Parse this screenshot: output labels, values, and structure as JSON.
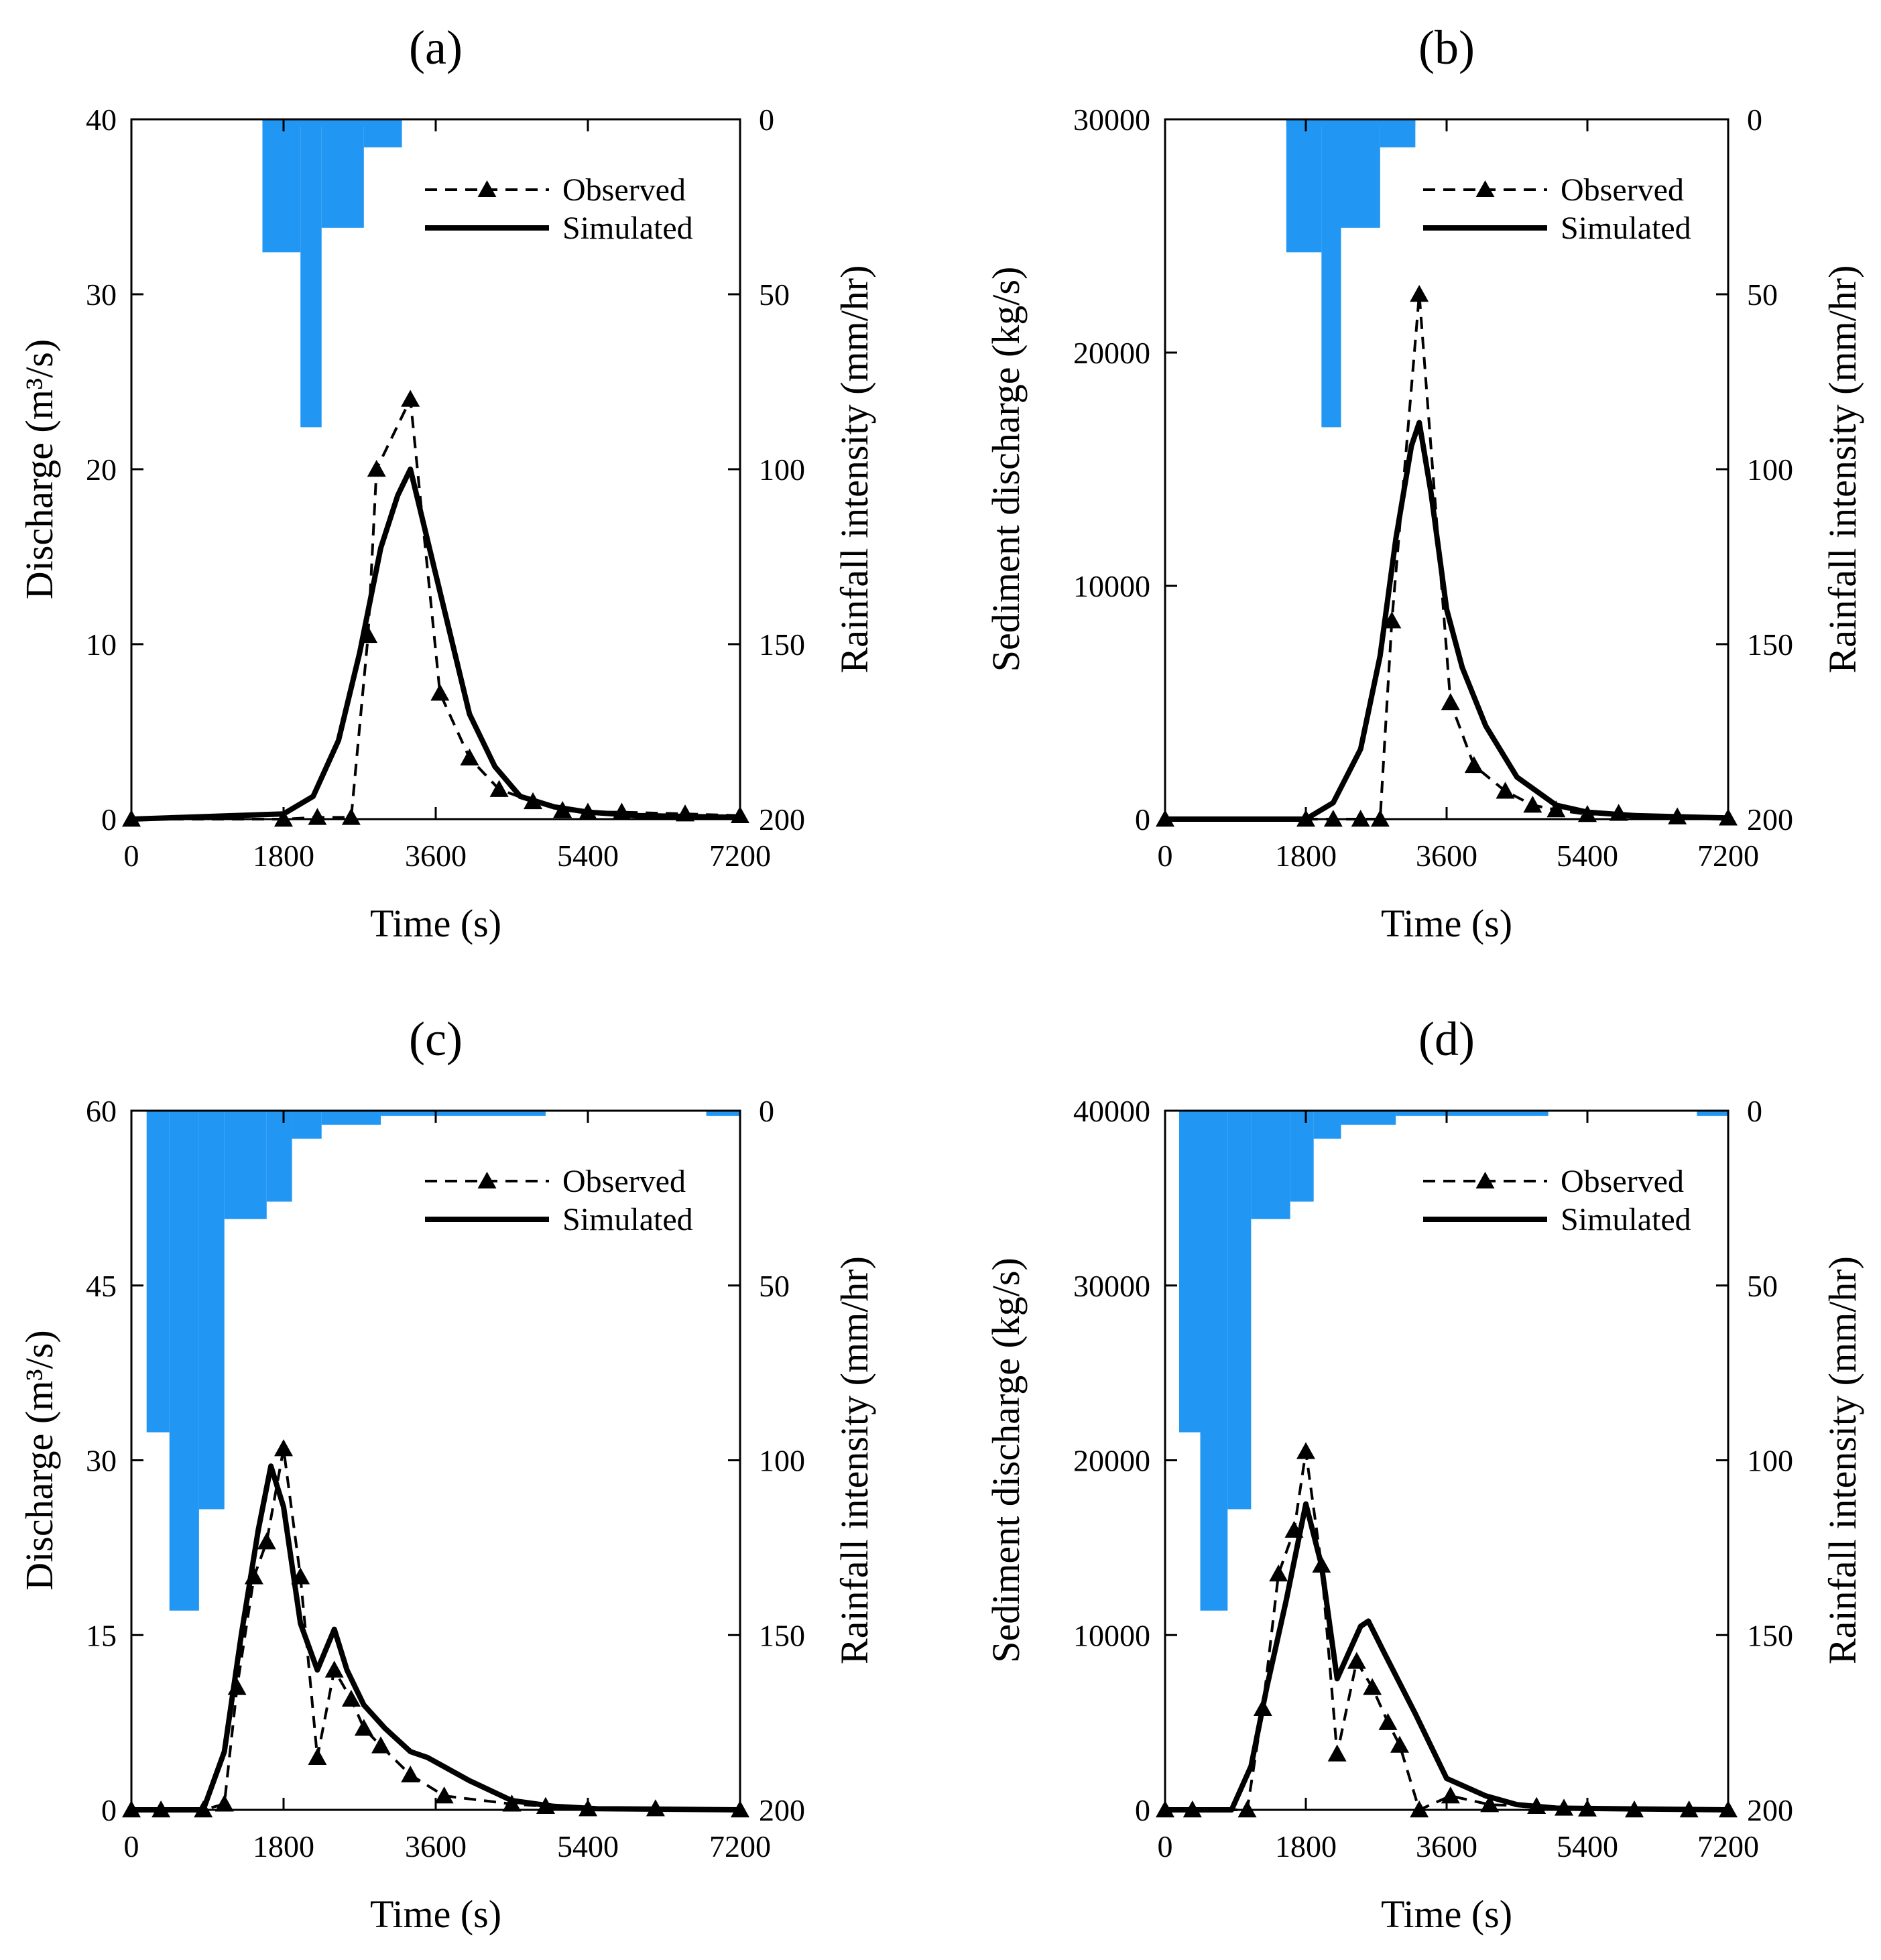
{
  "figure": {
    "panels": [
      "(a)",
      "(b)",
      "(c)",
      "(d)"
    ]
  },
  "colors": {
    "rainfall": "#2196F3",
    "observed": "#000000",
    "simulated": "#000000"
  },
  "chart_data": [
    {
      "panel": "(a)",
      "type": "line",
      "title": "(a)",
      "xlabel": "Time (s)",
      "ylabel": "Discharge (m³/s)",
      "y2label": "Rainfall intensity (mm/hr)",
      "xlim": [
        0,
        7200
      ],
      "xticks": [
        "0",
        "1800",
        "3600",
        "5400",
        "7200"
      ],
      "ylim": [
        0,
        40
      ],
      "yticks": [
        "0",
        "10",
        "20",
        "30",
        "40"
      ],
      "y2lim": [
        0,
        200
      ],
      "y2ticks": [
        "0",
        "50",
        "100",
        "150",
        "200"
      ],
      "legend": {
        "observed": "Observed",
        "simulated": "Simulated",
        "position": "top-right"
      },
      "rainfall": [
        {
          "x0": 1550,
          "x1": 2000,
          "value": 38
        },
        {
          "x0": 2000,
          "x1": 2250,
          "value": 88
        },
        {
          "x0": 2250,
          "x1": 2750,
          "value": 31
        },
        {
          "x0": 2750,
          "x1": 3200,
          "value": 8
        },
        {
          "x0": 1550,
          "x1": 3200,
          "value": 2
        }
      ],
      "series": [
        {
          "name": "Observed",
          "style": "dashed-triangle",
          "x": [
            0,
            1800,
            2200,
            2600,
            2800,
            2900,
            3300,
            3650,
            4000,
            4350,
            4750,
            5100,
            5400,
            5800,
            6550,
            7200
          ],
          "y": [
            0,
            0,
            0.1,
            0.1,
            10.5,
            20,
            24,
            7.2,
            3.5,
            1.7,
            1.0,
            0.5,
            0.4,
            0.4,
            0.3,
            0.2
          ]
        },
        {
          "name": "Simulated",
          "style": "solid-thick",
          "x": [
            0,
            1800,
            2150,
            2450,
            2700,
            2950,
            3150,
            3300,
            3400,
            3600,
            3800,
            4000,
            4300,
            4600,
            5000,
            5400,
            6000,
            7200
          ],
          "y": [
            0,
            0.3,
            1.3,
            4.5,
            9.5,
            15.5,
            18.5,
            20,
            18,
            14,
            10,
            6,
            3,
            1.3,
            0.7,
            0.4,
            0.2,
            0.1
          ]
        }
      ]
    },
    {
      "panel": "(b)",
      "type": "line",
      "title": "(b)",
      "xlabel": "Time (s)",
      "ylabel": "Sediment discharge (kg/s)",
      "y2label": "Rainfall intensity (mm/hr)",
      "xlim": [
        0,
        7200
      ],
      "xticks": [
        "0",
        "1800",
        "3600",
        "5400",
        "7200"
      ],
      "ylim": [
        0,
        30000
      ],
      "yticks": [
        "0",
        "10000",
        "20000",
        "30000"
      ],
      "y2lim": [
        0,
        200
      ],
      "y2ticks": [
        "0",
        "50",
        "100",
        "150",
        "200"
      ],
      "legend": {
        "observed": "Observed",
        "simulated": "Simulated",
        "position": "top-right"
      },
      "rainfall": [
        {
          "x0": 1550,
          "x1": 2000,
          "value": 38
        },
        {
          "x0": 2000,
          "x1": 2250,
          "value": 88
        },
        {
          "x0": 2250,
          "x1": 2750,
          "value": 31
        },
        {
          "x0": 2750,
          "x1": 3200,
          "value": 8
        },
        {
          "x0": 1550,
          "x1": 3200,
          "value": 2
        }
      ],
      "series": [
        {
          "name": "Observed",
          "style": "dashed-triangle",
          "x": [
            0,
            1800,
            2150,
            2500,
            2750,
            2900,
            3250,
            3650,
            3950,
            4350,
            4700,
            5000,
            5400,
            5800,
            6550,
            7200
          ],
          "y": [
            0,
            0,
            0,
            0,
            0,
            8500,
            22500,
            5000,
            2300,
            1200,
            600,
            400,
            200,
            250,
            100,
            50
          ],
          "note_points": "markers at each listed x"
        },
        {
          "name": "Simulated",
          "style": "solid-thick",
          "x": [
            0,
            1800,
            2150,
            2500,
            2750,
            2950,
            3150,
            3250,
            3400,
            3600,
            3800,
            4100,
            4500,
            5000,
            5400,
            6000,
            7200
          ],
          "y": [
            0,
            0,
            700,
            3000,
            7000,
            12000,
            16000,
            17000,
            14000,
            9000,
            6500,
            4000,
            1800,
            600,
            300,
            150,
            50
          ]
        }
      ]
    },
    {
      "panel": "(c)",
      "type": "line",
      "title": "(c)",
      "xlabel": "Time (s)",
      "ylabel": "Discharge (m³/s)",
      "y2label": "Rainfall intensity (mm/hr)",
      "xlim": [
        0,
        7200
      ],
      "xticks": [
        "0",
        "1800",
        "3600",
        "5400",
        "7200"
      ],
      "ylim": [
        0,
        60
      ],
      "yticks": [
        "0",
        "15",
        "30",
        "45",
        "60"
      ],
      "y2lim": [
        0,
        200
      ],
      "y2ticks": [
        "0",
        "50",
        "100",
        "150",
        "200"
      ],
      "legend": {
        "observed": "Observed",
        "simulated": "Simulated",
        "position": "top-right"
      },
      "rainfall": [
        {
          "x0": 180,
          "x1": 450,
          "value": 92
        },
        {
          "x0": 450,
          "x1": 800,
          "value": 143
        },
        {
          "x0": 800,
          "x1": 1100,
          "value": 114
        },
        {
          "x0": 1100,
          "x1": 1600,
          "value": 31
        },
        {
          "x0": 1600,
          "x1": 1900,
          "value": 26
        },
        {
          "x0": 1900,
          "x1": 2250,
          "value": 8
        },
        {
          "x0": 2250,
          "x1": 2950,
          "value": 4
        },
        {
          "x0": 2950,
          "x1": 4900,
          "value": 1.5
        },
        {
          "x0": 6800,
          "x1": 7200,
          "value": 1.5
        }
      ],
      "series": [
        {
          "name": "Observed",
          "style": "dashed-triangle",
          "x": [
            0,
            350,
            850,
            1100,
            1250,
            1450,
            1600,
            1800,
            2000,
            2200,
            2400,
            2600,
            2750,
            2950,
            3300,
            3700,
            4500,
            4900,
            5400,
            6200,
            7200
          ],
          "y": [
            0,
            0,
            0,
            0.5,
            10.5,
            20,
            23,
            31,
            20,
            4.5,
            12,
            9.5,
            7,
            5.5,
            3,
            1.2,
            0.5,
            0.3,
            0.1,
            0.1,
            0
          ],
          "note_points": "markers at each listed x"
        },
        {
          "name": "Simulated",
          "style": "solid-thick",
          "x": [
            0,
            850,
            1100,
            1300,
            1500,
            1650,
            1800,
            2000,
            2200,
            2400,
            2550,
            2750,
            3000,
            3300,
            3500,
            4000,
            4500,
            5000,
            5500,
            7200
          ],
          "y": [
            0,
            0,
            5,
            15,
            24,
            29.5,
            26,
            16,
            12,
            15.5,
            12,
            9,
            7,
            5,
            4.5,
            2.5,
            0.8,
            0.3,
            0.1,
            0
          ]
        }
      ]
    },
    {
      "panel": "(d)",
      "type": "line",
      "title": "(d)",
      "xlabel": "Time (s)",
      "ylabel": "Sediment discharge (kg/s)",
      "y2label": "Rainfall intensity (mm/hr)",
      "xlim": [
        0,
        7200
      ],
      "xticks": [
        "0",
        "1800",
        "3600",
        "5400",
        "7200"
      ],
      "ylim": [
        0,
        40000
      ],
      "yticks": [
        "0",
        "10000",
        "20000",
        "30000",
        "40000"
      ],
      "y2lim": [
        0,
        200
      ],
      "y2ticks": [
        "0",
        "50",
        "100",
        "150",
        "200"
      ],
      "legend": {
        "observed": "Observed",
        "simulated": "Simulated",
        "position": "top-right"
      },
      "rainfall": [
        {
          "x0": 180,
          "x1": 450,
          "value": 92
        },
        {
          "x0": 450,
          "x1": 800,
          "value": 143
        },
        {
          "x0": 800,
          "x1": 1100,
          "value": 114
        },
        {
          "x0": 1100,
          "x1": 1600,
          "value": 31
        },
        {
          "x0": 1600,
          "x1": 1900,
          "value": 26
        },
        {
          "x0": 1900,
          "x1": 2250,
          "value": 8
        },
        {
          "x0": 2250,
          "x1": 2950,
          "value": 4
        },
        {
          "x0": 2950,
          "x1": 4900,
          "value": 1.5
        },
        {
          "x0": 6800,
          "x1": 7200,
          "value": 1.5
        }
      ],
      "series": [
        {
          "name": "Observed",
          "style": "dashed-triangle",
          "x": [
            0,
            350,
            1050,
            1250,
            1450,
            1650,
            1800,
            2000,
            2200,
            2450,
            2650,
            2850,
            3000,
            3250,
            3650,
            4150,
            4750,
            5100,
            5400,
            6000,
            6700,
            7200
          ],
          "y": [
            0,
            0,
            0,
            5800,
            13500,
            16000,
            20500,
            14000,
            3200,
            8500,
            7000,
            5000,
            3700,
            0,
            800,
            300,
            200,
            100,
            50,
            0,
            0,
            0
          ],
          "note_points": "markers at each listed x"
        },
        {
          "name": "Simulated",
          "style": "solid-thick",
          "x": [
            0,
            850,
            1100,
            1300,
            1550,
            1800,
            2000,
            2200,
            2350,
            2500,
            2600,
            2800,
            3200,
            3600,
            4100,
            4500,
            5000,
            7200
          ],
          "y": [
            0,
            0,
            2500,
            7000,
            12000,
            17500,
            14000,
            7500,
            9000,
            10500,
            10800,
            9000,
            5500,
            1800,
            800,
            300,
            100,
            0
          ]
        }
      ]
    }
  ]
}
